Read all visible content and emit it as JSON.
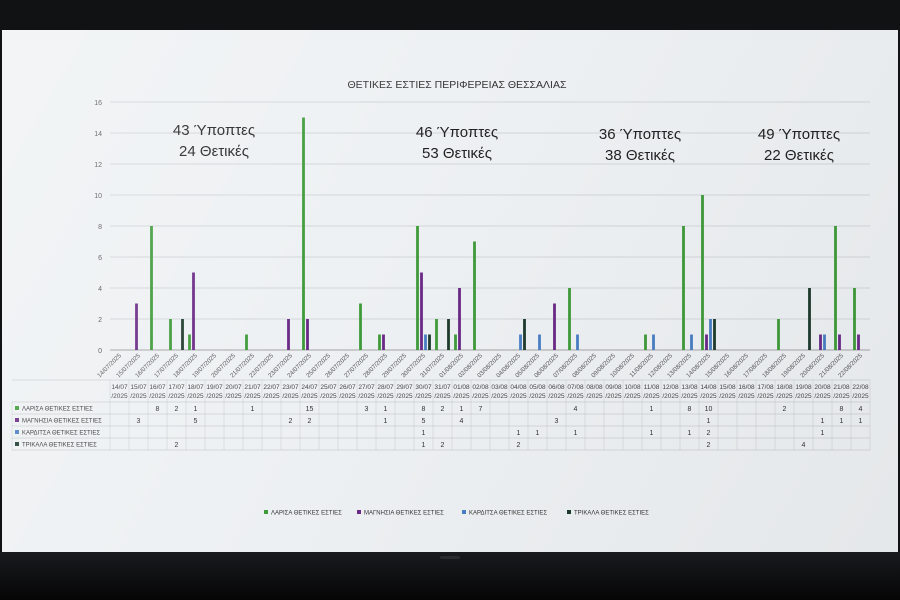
{
  "chart_data": {
    "type": "bar",
    "title": "ΘΕΤΙΚΕΣ ΕΣΤΙΕΣ ΠΕΡΙΦΕΡΕΙΑΣ ΘΕΣΣΑΛΙΑΣ",
    "ylim": [
      0,
      16
    ],
    "yticks": [
      0,
      2,
      4,
      6,
      8,
      10,
      12,
      14,
      16
    ],
    "grid": true,
    "legend_position": "bottom",
    "categories": [
      "14/07/2025",
      "15/07/2025",
      "16/07/2025",
      "17/07/2025",
      "18/07/2025",
      "19/07/2025",
      "20/07/2025",
      "21/07/2025",
      "22/07/2025",
      "23/07/2025",
      "24/07/2025",
      "25/07/2025",
      "26/07/2025",
      "27/07/2025",
      "28/07/2025",
      "29/07/2025",
      "30/07/2025",
      "31/07/2025",
      "01/08/2025",
      "02/08/2025",
      "03/08/2025",
      "04/08/2025",
      "05/08/2025",
      "06/08/2025",
      "07/08/2025",
      "08/08/2025",
      "09/08/2025",
      "10/08/2025",
      "11/08/2025",
      "12/08/2025",
      "13/08/2025",
      "14/08/2025",
      "15/08/2025",
      "16/08/2025",
      "17/08/2025",
      "18/08/2025",
      "19/08/2025",
      "20/08/2025",
      "21/08/2025",
      "22/08/2025"
    ],
    "table_headers": [
      "14/07/2025",
      "15/07/2025",
      "16/07/2025",
      "17/07/2025",
      "18/07/2025",
      "19/07/2025",
      "20/07/2025",
      "21/07/2025",
      "22/07/2025",
      "23/07/2025",
      "24/07/2025",
      "25/07/2025",
      "26/07/2025",
      "27/07/2025",
      "28/07/2025",
      "29/07/2025",
      "30/07/2025",
      "31/07/2025",
      "01/08/2025",
      "02/08/2025",
      "03/08/2025",
      "04/08/2025",
      "05/08/2025",
      "06/08/2025",
      "07/08/2025",
      "08/08/2025",
      "09/08/2025",
      "10/08/2025",
      "11/08/2025",
      "12/08/2025",
      "13/08/2025",
      "14/08/2025",
      "15/08/2025",
      "16/08/2025",
      "17/08/2025",
      "18/08/2025",
      "19/08/2025",
      "20/08/2025",
      "21/08/2025",
      "22/08/2025"
    ],
    "series": [
      {
        "name": "ΛΑΡΙΣΑ ΘΕΤΙΚΕΣ ΕΣΤΙΕΣ",
        "color": "#3f9b3a",
        "values": [
          null,
          null,
          8,
          2,
          1,
          null,
          null,
          1,
          null,
          null,
          15,
          null,
          null,
          3,
          1,
          null,
          8,
          2,
          1,
          7,
          null,
          null,
          null,
          null,
          4,
          null,
          null,
          null,
          1,
          null,
          8,
          10,
          null,
          null,
          null,
          2,
          null,
          null,
          8,
          4
        ]
      },
      {
        "name": "ΜΑΓΝΗΣΙΑ ΘΕΤΙΚΕΣ ΕΣΤΙΕΣ",
        "color": "#6a2a86",
        "values": [
          null,
          3,
          null,
          null,
          5,
          null,
          null,
          null,
          null,
          2,
          2,
          null,
          null,
          null,
          1,
          null,
          5,
          null,
          4,
          null,
          null,
          null,
          null,
          3,
          null,
          null,
          null,
          null,
          null,
          null,
          null,
          1,
          null,
          null,
          null,
          null,
          null,
          1,
          1,
          1
        ]
      },
      {
        "name": "ΚΑΡΔΙΤΣΑ ΘΕΤΙΚΕΣ ΕΣΤΙΕΣ",
        "color": "#4a7fc4",
        "values": [
          null,
          null,
          null,
          null,
          null,
          null,
          null,
          null,
          null,
          null,
          null,
          null,
          null,
          null,
          null,
          null,
          1,
          null,
          null,
          null,
          null,
          1,
          1,
          null,
          1,
          null,
          null,
          null,
          1,
          null,
          1,
          2,
          null,
          null,
          null,
          null,
          null,
          1,
          null,
          null
        ]
      },
      {
        "name": "ΤΡΙΚΑΛΑ ΘΕΤΙΚΕΣ ΕΣΤΙΕΣ",
        "color": "#1f3b2e",
        "values": [
          null,
          null,
          null,
          2,
          null,
          null,
          null,
          null,
          null,
          null,
          null,
          null,
          null,
          null,
          null,
          null,
          1,
          2,
          null,
          null,
          null,
          2,
          null,
          null,
          null,
          null,
          null,
          null,
          null,
          null,
          null,
          2,
          null,
          null,
          null,
          null,
          4,
          null,
          null,
          null
        ]
      }
    ],
    "annotations": [
      {
        "line1": "43 Ύποπτες",
        "line2": "24 Θετικές"
      },
      {
        "line1": "46 Ύποπτες",
        "line2": "53 Θετικές"
      },
      {
        "line1": "36 Ύποπτες",
        "line2": "38 Θετικές"
      },
      {
        "line1": "49 Ύποπτες",
        "line2": "22 Θετικές"
      }
    ]
  }
}
